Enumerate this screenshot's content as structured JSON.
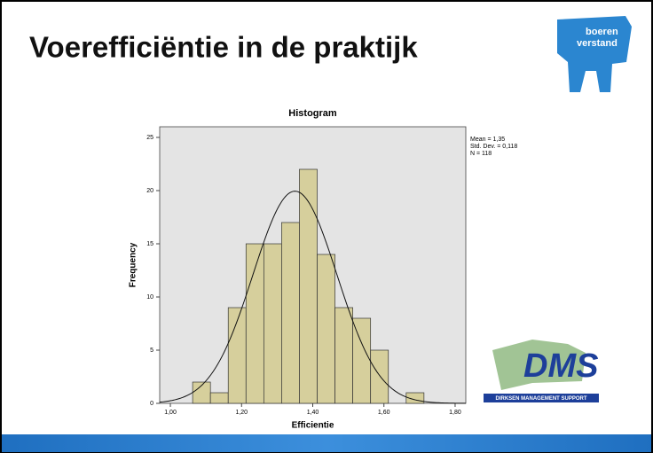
{
  "slide": {
    "title": "Voerefficiëntie in de praktijk",
    "logo_top": [
      "boeren",
      "verstand"
    ],
    "logo_bottom": {
      "name": "DMS",
      "subtitle": "DIRKSEN MANAGEMENT SUPPORT"
    }
  },
  "chart_data": {
    "type": "histogram",
    "title": "Histogram",
    "x_label": "Efficientie",
    "y_label": "Frequency",
    "bins": [
      1.0625,
      1.1125,
      1.1625,
      1.2125,
      1.2625,
      1.3125,
      1.3625,
      1.4125,
      1.4625,
      1.5125,
      1.5625,
      1.6125,
      1.6625,
      1.7125
    ],
    "values": [
      2,
      1,
      9,
      15,
      15,
      17,
      22,
      14,
      9,
      8,
      5,
      0,
      1
    ],
    "color": "#d6cf9c",
    "xlim": [
      0.97,
      1.83
    ],
    "xticks": [
      {
        "value": 1.0,
        "label": "1,00"
      },
      {
        "value": 1.2,
        "label": "1,20"
      },
      {
        "value": 1.4,
        "label": "1,40"
      },
      {
        "value": 1.6,
        "label": "1,60"
      },
      {
        "value": 1.8,
        "label": "1,80"
      }
    ],
    "ylim": [
      0,
      26
    ],
    "yticks": [
      0,
      5,
      10,
      15,
      20,
      25
    ],
    "normal_curve": {
      "mean": 1.35,
      "std": 0.118,
      "n": 118
    },
    "stats_text": [
      "Mean = 1,35",
      "Std. Dev. = 0,118",
      "N = 118"
    ]
  }
}
